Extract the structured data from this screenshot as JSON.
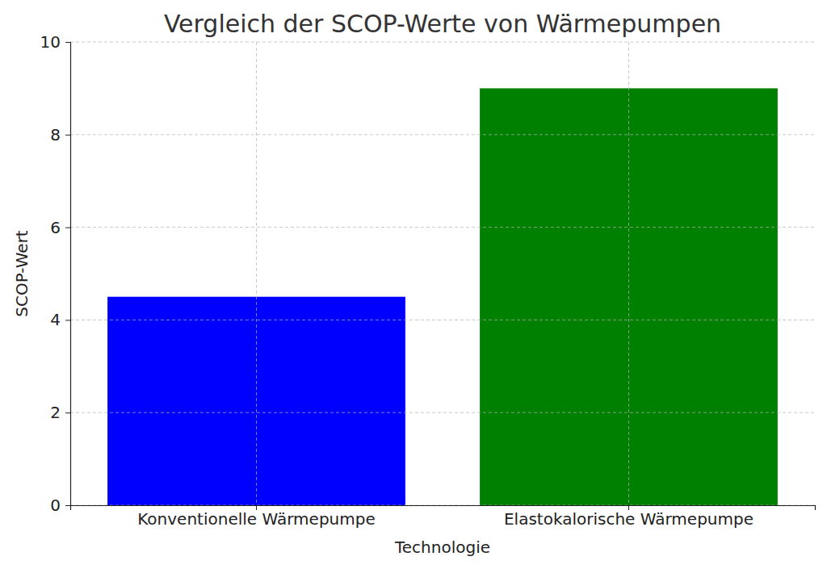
{
  "chart_data": {
    "type": "bar",
    "title": "Vergleich der SCOP-Werte von Wärmepumpen",
    "x_label": "Technologie",
    "y_label": "SCOP-Wert",
    "categories": [
      "Konventionelle Wärmepumpe",
      "Elastokalorische Wärmepumpe"
    ],
    "values": [
      4.5,
      9
    ],
    "colors": [
      "#0000ff",
      "#008000"
    ],
    "ylim": [
      0,
      10
    ],
    "yticks": [
      0,
      2,
      4,
      6,
      8,
      10
    ],
    "grid": true
  }
}
